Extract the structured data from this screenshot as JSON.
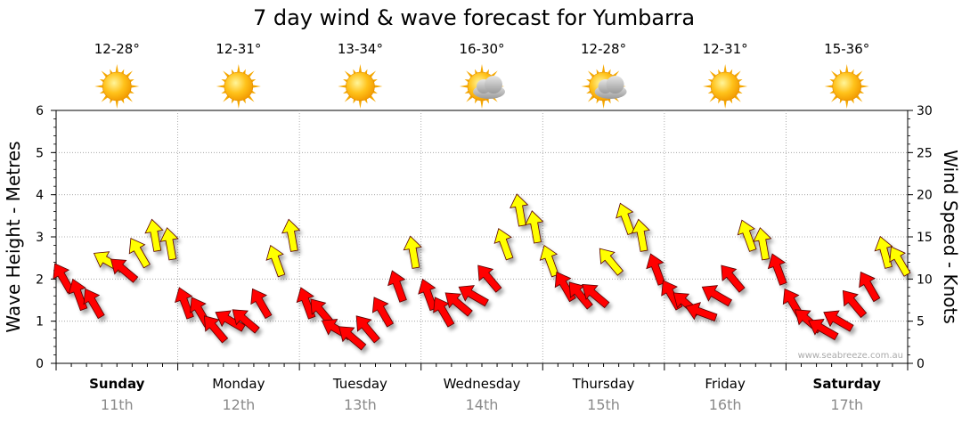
{
  "chart_data": {
    "type": "line",
    "title": "7 day wind & wave forecast for Yumbarra",
    "ylabel_left": "Wave Height - Metres",
    "ylabel_right": "Wind Speed - Knots",
    "ylim_left": [
      0,
      6
    ],
    "ylim_right": [
      0,
      30
    ],
    "yticks_left": [
      0,
      1,
      2,
      3,
      4,
      5,
      6
    ],
    "yticks_right": [
      0,
      5,
      10,
      15,
      20,
      25,
      30
    ],
    "grid": true,
    "watermark": "www.seabreeze.com.au",
    "days": [
      {
        "name": "Sunday",
        "date": "11th",
        "bold": true,
        "temp": "12-28°",
        "weather": "sunny-icon"
      },
      {
        "name": "Monday",
        "date": "12th",
        "bold": false,
        "temp": "12-31°",
        "weather": "sunny-icon"
      },
      {
        "name": "Tuesday",
        "date": "13th",
        "bold": false,
        "temp": "13-34°",
        "weather": "sunny-icon"
      },
      {
        "name": "Wednesday",
        "date": "14th",
        "bold": false,
        "temp": "16-30°",
        "weather": "partly-cloudy-icon"
      },
      {
        "name": "Thursday",
        "date": "15th",
        "bold": false,
        "temp": "12-28°",
        "weather": "partly-cloudy-icon"
      },
      {
        "name": "Friday",
        "date": "16th",
        "bold": false,
        "temp": "12-31°",
        "weather": "sunny-icon"
      },
      {
        "name": "Saturday",
        "date": "17th",
        "bold": true,
        "temp": "15-36°",
        "weather": "sunny-icon"
      }
    ],
    "colors": {
      "calm": "#ff0000",
      "strong": "#ffff00",
      "grid": "#999999"
    },
    "series": [
      {
        "unit": "knots",
        "hours_per_step": 3,
        "wind_speed": [
          10,
          8,
          7,
          12,
          11,
          13,
          15,
          14,
          7,
          6,
          4,
          5,
          5,
          7,
          12,
          15,
          7,
          6,
          4,
          3,
          4,
          6,
          9,
          13,
          8,
          6,
          7,
          8,
          10,
          14,
          18,
          16,
          12,
          9,
          8,
          8,
          12,
          17,
          15,
          11,
          8,
          7,
          6,
          8,
          10,
          15,
          14,
          11,
          7,
          5,
          4,
          5,
          7,
          9,
          13,
          12
        ],
        "wind_dir_deg": [
          330,
          340,
          330,
          300,
          310,
          330,
          350,
          350,
          340,
          330,
          320,
          300,
          310,
          330,
          340,
          350,
          340,
          320,
          300,
          310,
          320,
          330,
          340,
          350,
          340,
          330,
          310,
          300,
          320,
          340,
          350,
          350,
          340,
          330,
          320,
          310,
          320,
          340,
          350,
          340,
          330,
          310,
          290,
          300,
          320,
          340,
          350,
          340,
          330,
          310,
          300,
          300,
          320,
          330,
          345,
          330
        ]
      }
    ]
  }
}
